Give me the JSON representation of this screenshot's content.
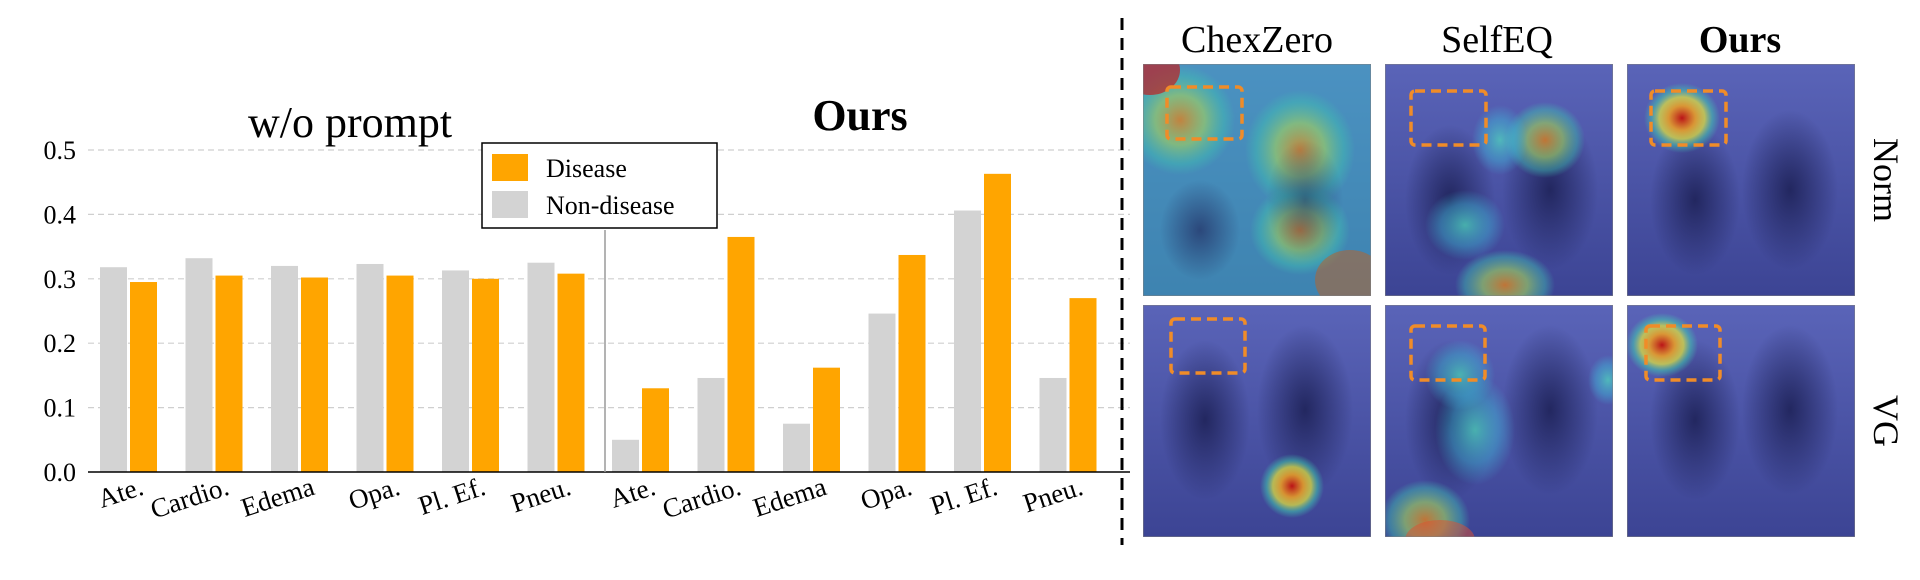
{
  "chart_data": {
    "type": "bar",
    "y_axis": {
      "ylim": [
        0.0,
        0.5
      ],
      "ticks": [
        "0.0",
        "0.1",
        "0.2",
        "0.3",
        "0.4",
        "0.5"
      ],
      "grid": true,
      "grid_style": "dashed"
    },
    "legend": {
      "placement": "top-center",
      "entries": [
        {
          "name": "Disease",
          "color": "#ffa500"
        },
        {
          "name": "Non-disease",
          "color": "#d3d3d3"
        }
      ]
    },
    "panels": [
      {
        "title": "w/o prompt",
        "title_bold": false,
        "categories": [
          "Ate.",
          "Cardio.",
          "Edema",
          "Opa.",
          "Pl. Ef.",
          "Pneu."
        ],
        "series": [
          {
            "name": "Non-disease",
            "values": [
              0.318,
              0.332,
              0.32,
              0.323,
              0.313,
              0.325
            ]
          },
          {
            "name": "Disease",
            "values": [
              0.295,
              0.305,
              0.302,
              0.305,
              0.3,
              0.308
            ]
          }
        ]
      },
      {
        "title": "Ours",
        "title_bold": true,
        "categories": [
          "Ate.",
          "Cardio.",
          "Edema",
          "Opa.",
          "Pl. Ef.",
          "Pneu."
        ],
        "series": [
          {
            "name": "Non-disease",
            "values": [
              0.05,
              0.146,
              0.075,
              0.246,
              0.406,
              0.146
            ]
          },
          {
            "name": "Disease",
            "values": [
              0.13,
              0.365,
              0.162,
              0.337,
              0.463,
              0.27
            ]
          }
        ]
      }
    ]
  },
  "heatmap_grid": {
    "columns": [
      {
        "title": "ChexZero",
        "bold": false
      },
      {
        "title": "SelfEQ",
        "bold": false
      },
      {
        "title": "Ours",
        "bold": true
      }
    ],
    "rows": [
      {
        "label": "Norm"
      },
      {
        "label": "VG"
      }
    ]
  }
}
